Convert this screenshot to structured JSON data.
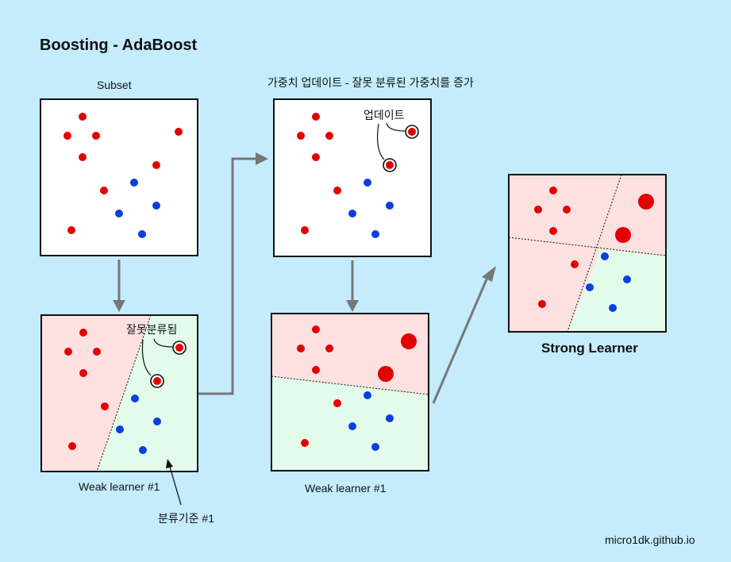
{
  "title": "Boosting - AdaBoost",
  "labels": {
    "subset": "Subset",
    "weight_update_caption": "가중치 업데이트 - 잘못 분류된 가중치를 증가",
    "misclassified": "잘못분류됨",
    "update": "업데이트",
    "weak_learner_1": "Weak learner #1",
    "weak_learner_2": "Weak learner #1",
    "criterion": "분류기준 #1",
    "strong_learner": "Strong Learner",
    "footer": "micro1dk.github.io"
  },
  "colors": {
    "background": "#c4ecfd",
    "red_point": "#e30000",
    "blue_point": "#0a3fe0",
    "red_region": "#fde1e1",
    "green_region": "#e3fbea",
    "arrow": "#777777"
  }
}
